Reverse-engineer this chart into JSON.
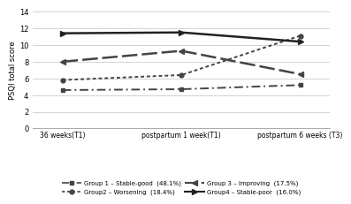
{
  "x_labels": [
    "36 weeks(T1)",
    "postpartum 1 week(T1)",
    "postpartum 6 weeks (T3)"
  ],
  "x_positions": [
    0,
    1,
    2
  ],
  "groups": {
    "group1": {
      "label": "Group 1 – Stable-good  (48.1%)",
      "values": [
        4.6,
        4.7,
        5.2
      ],
      "color": "#444444",
      "linewidth": 1.4
    },
    "group2": {
      "label": "Group2 – Worsening  (18.4%)",
      "values": [
        5.8,
        6.4,
        11.1
      ],
      "color": "#444444",
      "linewidth": 1.4
    },
    "group3": {
      "label": "Group 3 – Improving  (17.5%)",
      "values": [
        8.0,
        9.3,
        6.5
      ],
      "color": "#444444",
      "linewidth": 1.8
    },
    "group4": {
      "label": "Group4 – Stable-poor  (16.0%)",
      "values": [
        11.4,
        11.5,
        10.4
      ],
      "color": "#222222",
      "linewidth": 1.8
    }
  },
  "ylabel": "PSQI total score",
  "ylim": [
    0,
    14
  ],
  "yticks": [
    0,
    2,
    4,
    6,
    8,
    10,
    12,
    14
  ],
  "background_color": "#ffffff",
  "grid_color": "#cccccc"
}
